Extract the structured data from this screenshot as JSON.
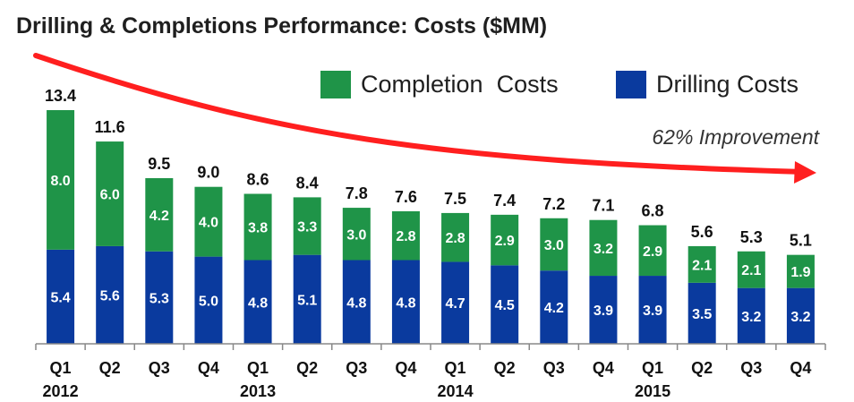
{
  "colors": {
    "completion": "#1f9448",
    "drilling": "#0a3a9e",
    "arrow": "#ff1f1f",
    "axis": "#888888"
  },
  "chart_data": {
    "type": "bar",
    "stacked": true,
    "title": "Drilling & Completions Performance: Costs ($MM)",
    "categories": [
      "Q1",
      "Q2",
      "Q3",
      "Q4",
      "Q1",
      "Q2",
      "Q3",
      "Q4",
      "Q1",
      "Q2",
      "Q3",
      "Q4",
      "Q1",
      "Q2",
      "Q3",
      "Q4"
    ],
    "years": [
      "2012",
      "",
      "",
      "",
      "2013",
      "",
      "",
      "",
      "2014",
      "",
      "",
      "",
      "2015",
      "",
      "",
      ""
    ],
    "series": [
      {
        "name": "Drilling Costs",
        "values": [
          5.4,
          5.6,
          5.3,
          5.0,
          4.8,
          5.1,
          4.8,
          4.8,
          4.7,
          4.5,
          4.2,
          3.9,
          3.9,
          3.5,
          3.2,
          3.2
        ]
      },
      {
        "name": "Completion  Costs",
        "values": [
          8.0,
          6.0,
          4.2,
          4.0,
          3.8,
          3.3,
          3.0,
          2.8,
          2.8,
          2.9,
          3.0,
          3.2,
          2.9,
          2.1,
          2.1,
          1.9
        ]
      }
    ],
    "totals": [
      13.4,
      11.6,
      9.5,
      9.0,
      8.6,
      8.4,
      7.8,
      7.6,
      7.5,
      7.4,
      7.2,
      7.1,
      6.8,
      5.6,
      5.3,
      5.1
    ],
    "ylim": [
      0,
      13.4
    ],
    "grid": false,
    "legend_position": "top-right",
    "annotations": [
      "62% Improvement"
    ]
  },
  "legend": {
    "completion_label": "Completion  Costs",
    "drilling_label": "Drilling Costs"
  }
}
